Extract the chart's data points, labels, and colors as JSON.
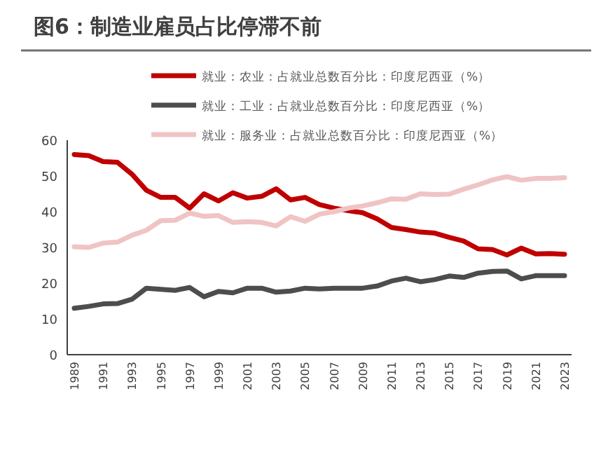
{
  "chart_data": {
    "type": "line",
    "title": "图6：制造业雇员占比停滞不前",
    "categories": [
      "1989",
      null,
      "1991",
      null,
      "1993",
      null,
      "1995",
      null,
      "1997",
      null,
      "1999",
      null,
      "2001",
      null,
      "2003",
      null,
      "2005",
      null,
      "2007",
      null,
      "2009",
      null,
      "2011",
      null,
      "2013",
      null,
      "2015",
      null,
      "2017",
      null,
      "2019",
      null,
      "2021",
      null,
      "2023"
    ],
    "series": [
      {
        "name": "就业：农业：占就业总数百分比：印度尼西亚（%）",
        "color": "#c00000",
        "values": [
          56,
          55.7,
          54,
          53.8,
          50.5,
          46,
          44,
          44,
          41,
          45,
          43,
          45.3,
          43.8,
          44.3,
          46.4,
          43.3,
          44,
          42,
          41,
          40.3,
          39.7,
          38,
          35.6,
          35,
          34.3,
          34,
          32.8,
          31.8,
          29.6,
          29.4,
          27.9,
          29.8,
          28.2,
          28.3,
          28.1
        ]
      },
      {
        "name": "就业：工业：占就业总数百分比：印度尼西亚（%）",
        "color": "#4d4d4d",
        "values": [
          13,
          13.5,
          14.2,
          14.3,
          15.5,
          18.6,
          18.3,
          18,
          18.8,
          16.2,
          17.7,
          17.3,
          18.6,
          18.6,
          17.5,
          17.8,
          18.6,
          18.4,
          18.6,
          18.6,
          18.6,
          19.2,
          20.6,
          21.4,
          20.4,
          21,
          22,
          21.6,
          22.8,
          23.3,
          23.4,
          21.2,
          22.1,
          22.1,
          22.1
        ]
      },
      {
        "name": "就业：服务业：占就业总数百分比：印度尼西亚（%）",
        "color": "#f0c4c4",
        "values": [
          30.2,
          30,
          31.2,
          31.5,
          33.4,
          34.8,
          37.5,
          37.6,
          39.6,
          38.7,
          38.9,
          37,
          37.2,
          37,
          36,
          38.6,
          37.3,
          39.3,
          40,
          41,
          41.6,
          42.5,
          43.6,
          43.5,
          45,
          44.8,
          44.9,
          46.3,
          47.5,
          48.9,
          49.8,
          48.8,
          49.3,
          49.3,
          49.5
        ]
      }
    ],
    "ylim": [
      0,
      60
    ],
    "yticks": [
      0,
      10,
      20,
      30,
      40,
      50,
      60
    ],
    "legend": "top",
    "grid": false
  }
}
